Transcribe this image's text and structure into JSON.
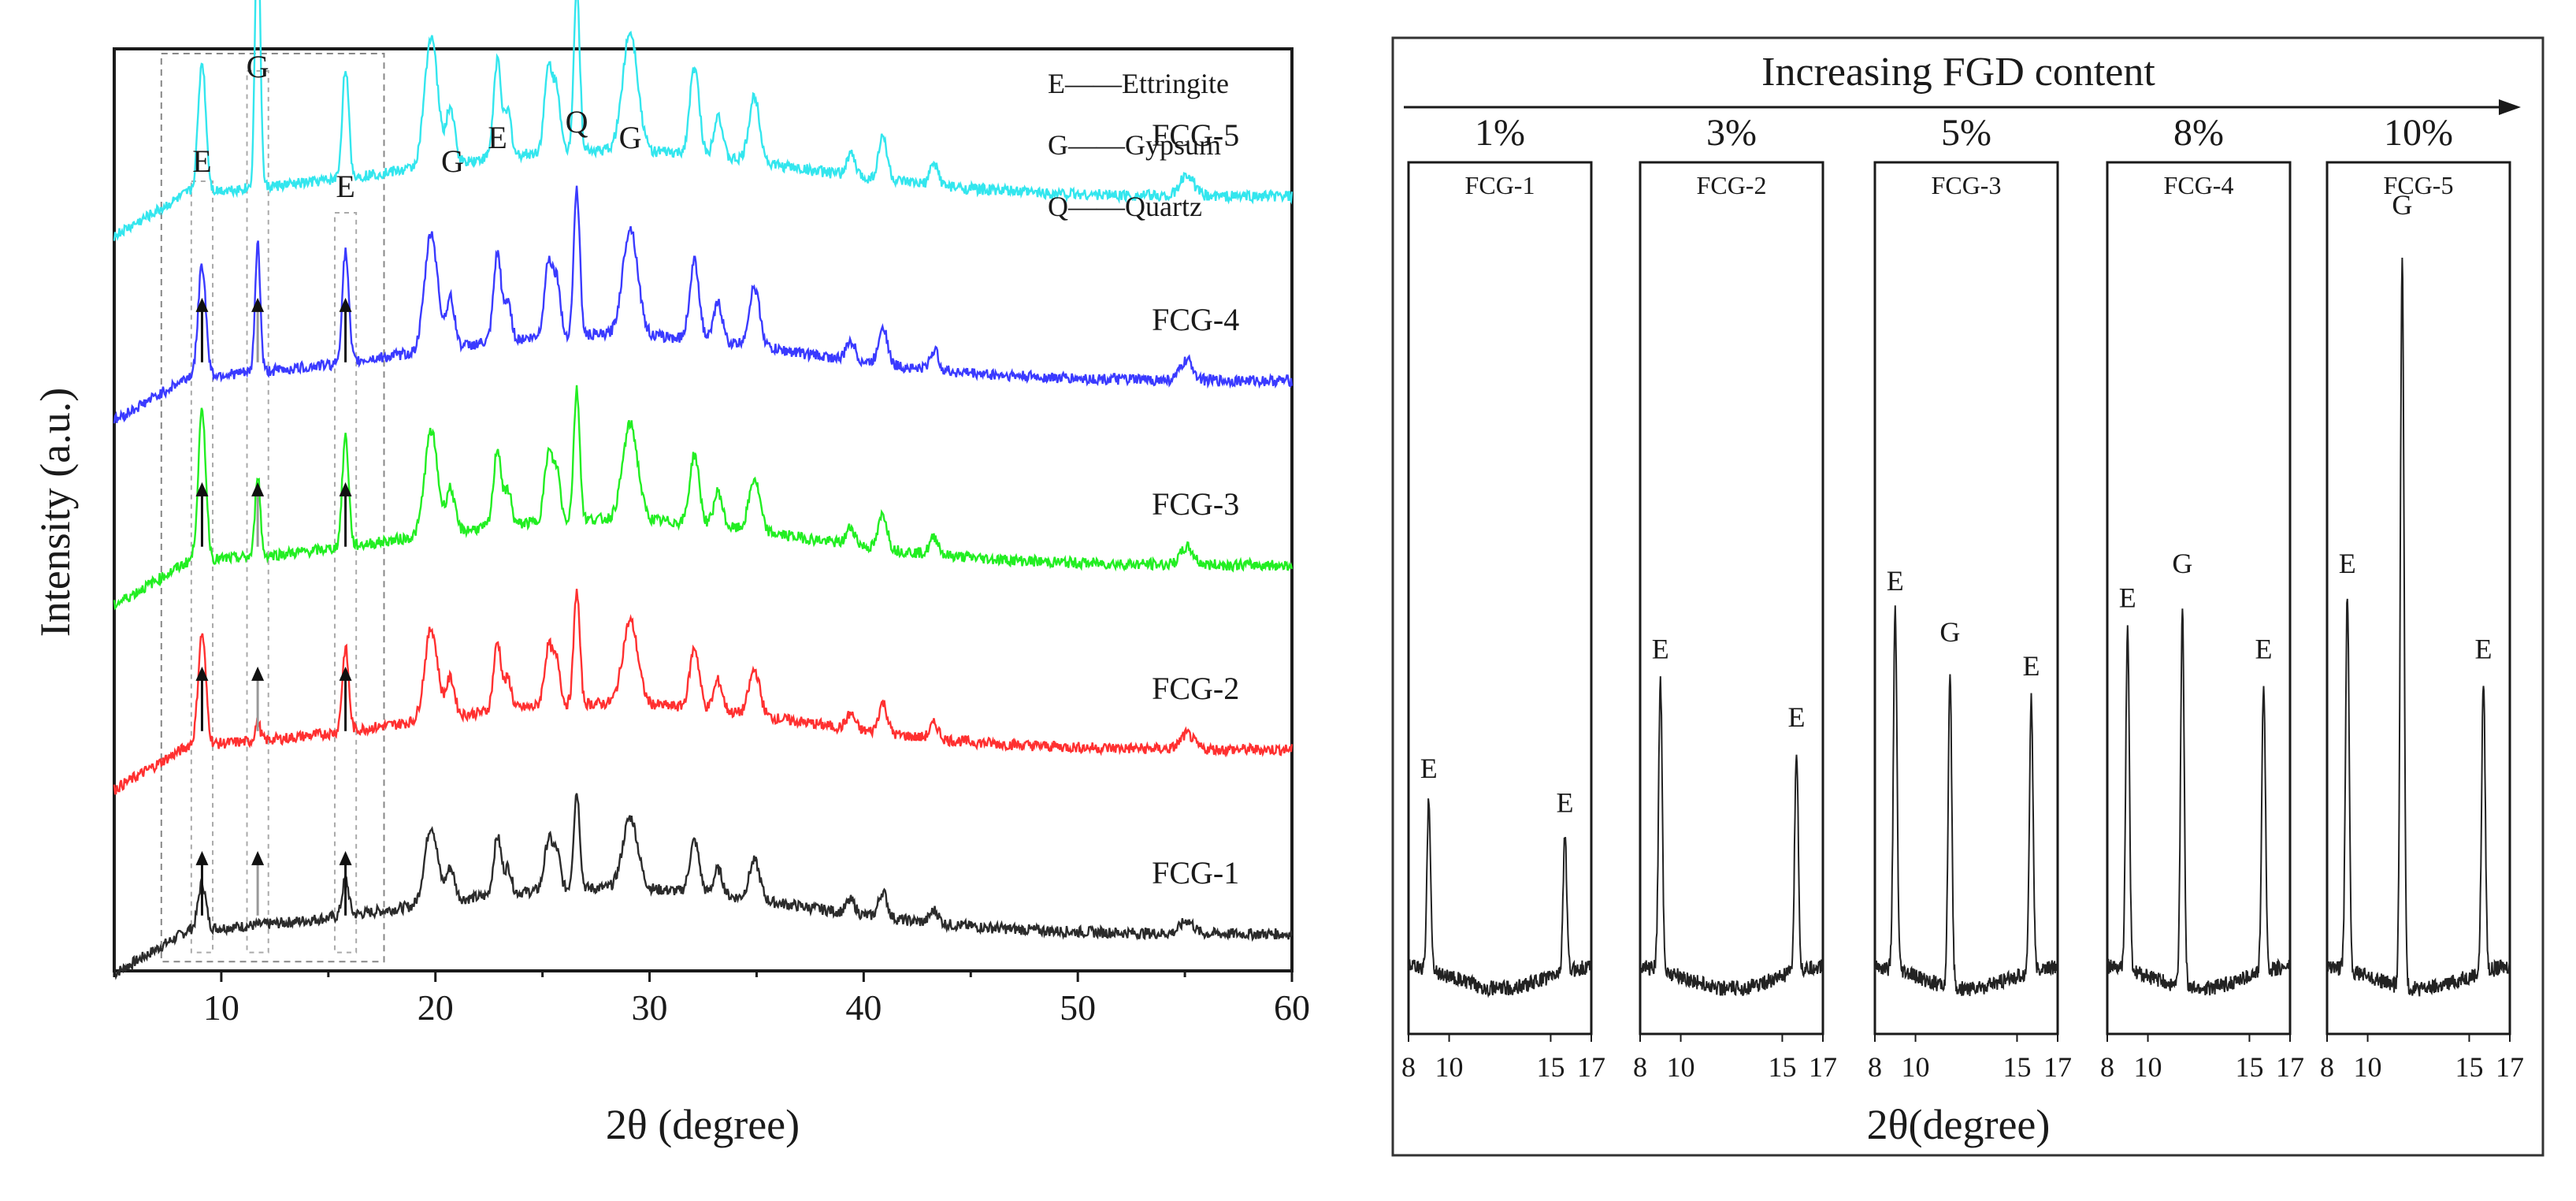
{
  "chart_data": [
    {
      "type": "line",
      "title": "",
      "xlabel": "2θ (degree)",
      "ylabel": "Intensity (a.u.)",
      "xlim": [
        5,
        60
      ],
      "xticks": [
        10,
        20,
        30,
        40,
        50,
        60
      ],
      "grid": false,
      "legend_position": "top-right",
      "legend": [
        "E——Ettringite",
        "G——Gypsum",
        "Q——Quartz"
      ],
      "series": [
        {
          "name": "FCG-1",
          "color": "#2b2b2b",
          "baseline": 0.04,
          "peaks": [
            {
              "x": 9.1,
              "h": 0.05,
              "w": 0.18
            },
            {
              "x": 15.8,
              "h": 0.04,
              "w": 0.15
            }
          ]
        },
        {
          "name": "FCG-2",
          "color": "#ff3030",
          "baseline": 0.24,
          "peaks": [
            {
              "x": 9.1,
              "h": 0.12,
              "w": 0.18
            },
            {
              "x": 11.7,
              "h": 0.02,
              "w": 0.12
            },
            {
              "x": 15.8,
              "h": 0.09,
              "w": 0.15
            }
          ]
        },
        {
          "name": "FCG-3",
          "color": "#22ee22",
          "baseline": 0.44,
          "peaks": [
            {
              "x": 9.1,
              "h": 0.16,
              "w": 0.18
            },
            {
              "x": 11.7,
              "h": 0.09,
              "w": 0.12
            },
            {
              "x": 15.8,
              "h": 0.12,
              "w": 0.15
            }
          ]
        },
        {
          "name": "FCG-4",
          "color": "#3a3aff",
          "baseline": 0.64,
          "peaks": [
            {
              "x": 9.1,
              "h": 0.12,
              "w": 0.18
            },
            {
              "x": 11.7,
              "h": 0.14,
              "w": 0.12
            },
            {
              "x": 15.8,
              "h": 0.12,
              "w": 0.15
            }
          ]
        },
        {
          "name": "FCG-5",
          "color": "#33e6ee",
          "baseline": 0.84,
          "peaks": [
            {
              "x": 9.1,
              "h": 0.14,
              "w": 0.18
            },
            {
              "x": 11.7,
              "h": 0.3,
              "w": 0.12
            },
            {
              "x": 15.8,
              "h": 0.12,
              "w": 0.15
            }
          ]
        }
      ],
      "common_peaks": [
        {
          "x": 19.8,
          "h": 0.12,
          "w": 0.3
        },
        {
          "x": 20.7,
          "h": 0.05,
          "w": 0.2
        },
        {
          "x": 22.9,
          "h": 0.09,
          "w": 0.18
        },
        {
          "x": 23.4,
          "h": 0.04,
          "w": 0.15
        },
        {
          "x": 25.3,
          "h": 0.08,
          "w": 0.2
        },
        {
          "x": 25.7,
          "h": 0.05,
          "w": 0.15
        },
        {
          "x": 26.6,
          "h": 0.15,
          "w": 0.14
        },
        {
          "x": 29.1,
          "h": 0.11,
          "w": 0.35
        },
        {
          "x": 32.1,
          "h": 0.08,
          "w": 0.22
        },
        {
          "x": 33.2,
          "h": 0.04,
          "w": 0.2
        },
        {
          "x": 34.9,
          "h": 0.06,
          "w": 0.25
        },
        {
          "x": 39.4,
          "h": 0.02,
          "w": 0.2
        },
        {
          "x": 40.9,
          "h": 0.04,
          "w": 0.2
        },
        {
          "x": 43.3,
          "h": 0.02,
          "w": 0.2
        },
        {
          "x": 55.1,
          "h": 0.02,
          "w": 0.3
        }
      ],
      "annotations": [
        {
          "text": "E",
          "x": 9.1
        },
        {
          "text": "G",
          "x": 11.7
        },
        {
          "text": "E",
          "x": 15.8
        },
        {
          "text": "G",
          "x": 20.8
        },
        {
          "text": "E",
          "x": 22.9
        },
        {
          "text": "Q",
          "x": 26.6
        },
        {
          "text": "G",
          "x": 29.1
        }
      ]
    },
    {
      "type": "line",
      "title": "Increasing FGD content",
      "xlabel": "2θ(degree)",
      "ylabel": "",
      "xlim": [
        8,
        17
      ],
      "xticks": [
        8,
        10,
        15,
        17
      ],
      "panels": [
        {
          "percent": "1%",
          "sample": "FCG-1",
          "peaks": [
            {
              "label": "E",
              "x": 9.0,
              "h": 0.2
            },
            {
              "label": "E",
              "x": 15.7,
              "h": 0.16
            }
          ]
        },
        {
          "percent": "3%",
          "sample": "FCG-2",
          "peaks": [
            {
              "label": "E",
              "x": 9.0,
              "h": 0.34
            },
            {
              "label": "E",
              "x": 15.7,
              "h": 0.26
            }
          ]
        },
        {
          "percent": "5%",
          "sample": "FCG-3",
          "peaks": [
            {
              "label": "E",
              "x": 9.0,
              "h": 0.42
            },
            {
              "label": "G",
              "x": 11.7,
              "h": 0.36
            },
            {
              "label": "E",
              "x": 15.7,
              "h": 0.32
            }
          ]
        },
        {
          "percent": "8%",
          "sample": "FCG-4",
          "peaks": [
            {
              "label": "E",
              "x": 9.0,
              "h": 0.4
            },
            {
              "label": "G",
              "x": 11.7,
              "h": 0.44
            },
            {
              "label": "E",
              "x": 15.7,
              "h": 0.34
            }
          ]
        },
        {
          "percent": "10%",
          "sample": "FCG-5",
          "peaks": [
            {
              "label": "E",
              "x": 9.0,
              "h": 0.44
            },
            {
              "label": "G",
              "x": 11.7,
              "h": 0.86
            },
            {
              "label": "E",
              "x": 15.7,
              "h": 0.34
            }
          ]
        }
      ]
    }
  ]
}
